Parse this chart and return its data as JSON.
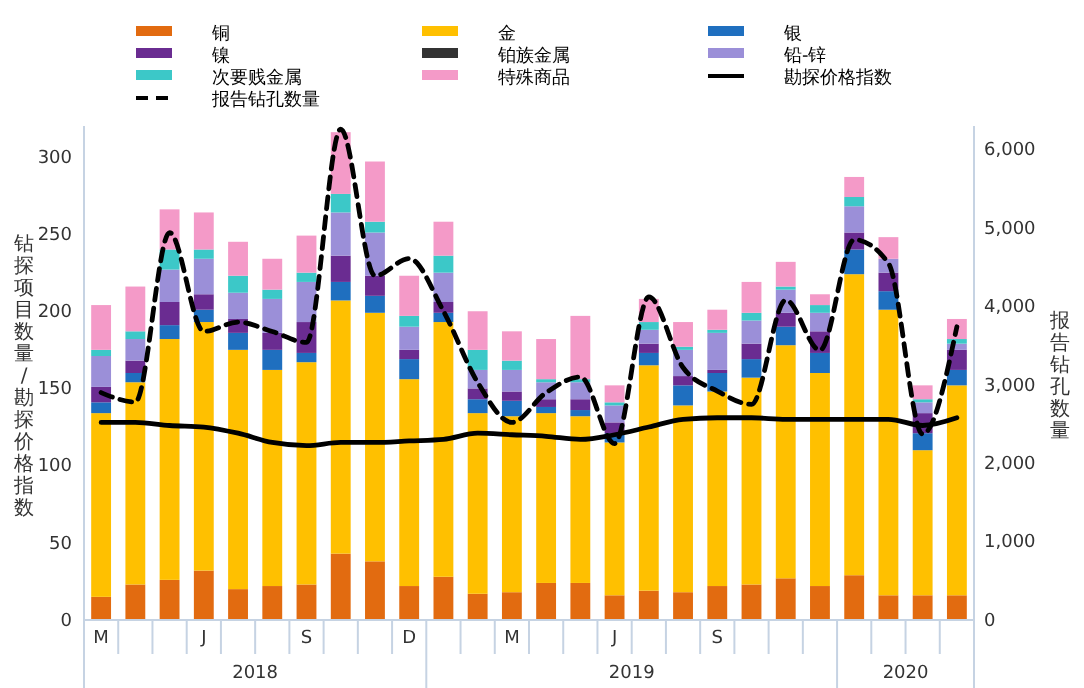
{
  "chart_data": {
    "type": "bar",
    "stacked": true,
    "ylabel": "钻探项目数量/勘探价格指数",
    "y2label": "报告钻孔数量",
    "categories": [
      "M",
      null,
      null,
      "J",
      null,
      null,
      "S",
      null,
      null,
      "D",
      null,
      null,
      "M",
      null,
      null,
      "J",
      null,
      null,
      "S",
      null,
      null,
      null,
      null,
      null,
      null,
      null
    ],
    "annotations": [
      "2018",
      "2019",
      "2020"
    ],
    "ylim": [
      0,
      320
    ],
    "yticks": [
      0,
      50,
      100,
      150,
      200,
      250,
      300
    ],
    "y2lim": [
      0,
      6300
    ],
    "y2ticks": [
      0,
      {
        "value": 1000,
        "label": "1,000"
      },
      {
        "value": 2000,
        "label": "2,000"
      },
      {
        "value": 3000,
        "label": "3,000"
      },
      {
        "value": 4000,
        "label": "4,000"
      },
      {
        "value": 5000,
        "label": "5,000"
      },
      {
        "value": 6000,
        "label": "6,000"
      }
    ],
    "grid": false,
    "legend": "top",
    "series": [
      {
        "name": "铜",
        "color": "#e26b10",
        "values": [
          15,
          23,
          26,
          32,
          20,
          22,
          23,
          43,
          38,
          22,
          28,
          17,
          18,
          24,
          24,
          16,
          19,
          18,
          22,
          23,
          27,
          22,
          29,
          16,
          16,
          16
        ]
      },
      {
        "name": "金",
        "color": "#ffc000",
        "values": [
          119,
          131,
          156,
          161,
          155,
          140,
          144,
          164,
          161,
          134,
          165,
          117,
          114,
          110,
          108,
          99,
          146,
          121,
          126,
          134,
          151,
          138,
          195,
          185,
          94,
          136
        ]
      },
      {
        "name": "银",
        "color": "#1f6fbf",
        "values": [
          7,
          6,
          9,
          8,
          11,
          13,
          6,
          12,
          11,
          13,
          6,
          9,
          10,
          4,
          4,
          6,
          8,
          13,
          12,
          12,
          12,
          13,
          16,
          12,
          11,
          10
        ]
      },
      {
        "name": "镍",
        "color": "#6a2c91",
        "values": [
          10,
          8,
          15,
          10,
          9,
          11,
          20,
          17,
          13,
          6,
          7,
          7,
          6,
          5,
          7,
          7,
          6,
          6,
          2,
          10,
          9,
          14,
          11,
          12,
          13,
          13
        ]
      },
      {
        "name": "铂族金属",
        "color": "#333333",
        "values": [
          0,
          0,
          0,
          0,
          0,
          0,
          0,
          0,
          0,
          0,
          0,
          0,
          0,
          0,
          0,
          0,
          0,
          0,
          0,
          0,
          0,
          0,
          0,
          0,
          0,
          0
        ]
      },
      {
        "name": "铅-锌",
        "color": "#9b8fd8",
        "values": [
          20,
          14,
          21,
          23,
          17,
          22,
          26,
          28,
          28,
          15,
          19,
          12,
          14,
          11,
          11,
          11,
          9,
          17,
          24,
          15,
          15,
          12,
          17,
          9,
          7,
          4
        ]
      },
      {
        "name": "次要贱金属",
        "color": "#3cc8c8",
        "values": [
          4,
          5,
          13,
          6,
          11,
          6,
          6,
          12,
          7,
          7,
          11,
          13,
          6,
          2,
          2,
          2,
          5,
          2,
          2,
          5,
          2,
          5,
          6,
          0,
          2,
          3
        ]
      },
      {
        "name": "特殊商品",
        "color": "#f49ac8",
        "values": [
          29,
          29,
          26,
          24,
          22,
          20,
          24,
          40,
          39,
          26,
          22,
          25,
          19,
          26,
          41,
          11,
          15,
          16,
          13,
          20,
          16,
          7,
          13,
          14,
          9,
          13
        ]
      },
      {
        "name": "勘探价格指数",
        "type": "line",
        "color": "#000000",
        "line_style": "solid",
        "values": [
          128,
          128,
          126,
          125,
          121,
          115,
          113,
          115,
          115,
          116,
          117,
          121,
          120,
          119,
          117,
          120,
          125,
          130,
          131,
          131,
          130,
          130,
          130,
          130,
          126,
          131
        ]
      },
      {
        "name": "报告钻孔数量",
        "type": "line",
        "axis": "y2",
        "color": "#000000",
        "line_style": "dashed",
        "values": [
          2900,
          2780,
          4940,
          3680,
          3800,
          3680,
          3540,
          6260,
          4390,
          4610,
          3940,
          3030,
          2520,
          2900,
          3100,
          2250,
          4120,
          3220,
          2920,
          2750,
          4080,
          3440,
          4850,
          4550,
          2370,
          3740
        ]
      }
    ]
  }
}
